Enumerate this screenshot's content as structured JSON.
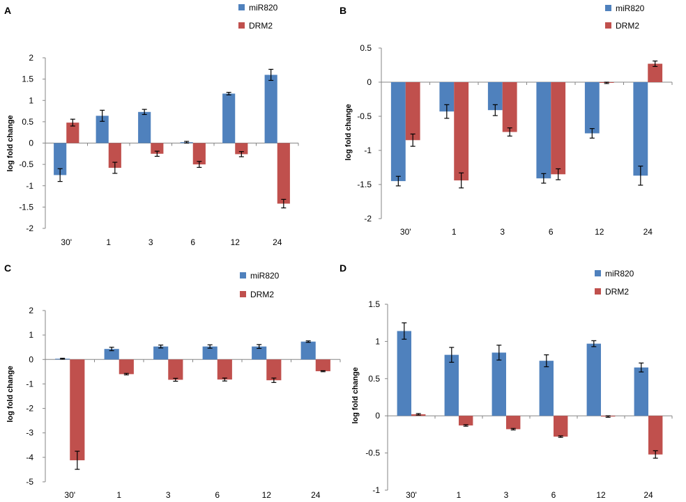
{
  "colors": {
    "miR820": "#4f81bd",
    "DRM2": "#c0504d",
    "axis": "#868686",
    "error": "#000000"
  },
  "chart_data": [
    {
      "panel": "A",
      "type": "bar",
      "categories": [
        "30'",
        "1",
        "3",
        "6",
        "12",
        "24"
      ],
      "series": [
        {
          "name": "miR820",
          "values": [
            -0.75,
            0.64,
            0.73,
            0.02,
            1.16,
            1.6
          ],
          "errors": [
            0.15,
            0.13,
            0.06,
            0.02,
            0.03,
            0.13
          ]
        },
        {
          "name": "DRM2",
          "values": [
            0.48,
            -0.58,
            -0.25,
            -0.5,
            -0.26,
            -1.42
          ],
          "errors": [
            0.08,
            0.13,
            0.06,
            0.07,
            0.06,
            0.1
          ]
        }
      ],
      "ylabel": "log fold change",
      "ylim": [
        -2,
        2
      ],
      "yticks": [
        -2,
        -1.5,
        -1,
        -0.5,
        0,
        0.5,
        1,
        1.5,
        2
      ],
      "ytick_labels": [
        "-2",
        "-1.5",
        "-1",
        "-0.5",
        "0",
        "0.5",
        "1",
        "1.5",
        "2"
      ]
    },
    {
      "panel": "B",
      "type": "bar",
      "categories": [
        "30'",
        "1",
        "3",
        "6",
        "12",
        "24"
      ],
      "series": [
        {
          "name": "miR820",
          "values": [
            -1.45,
            -0.43,
            -0.41,
            -1.41,
            -0.75,
            -1.37
          ],
          "errors": [
            0.07,
            0.1,
            0.08,
            0.07,
            0.07,
            0.14
          ]
        },
        {
          "name": "DRM2",
          "values": [
            -0.85,
            -1.44,
            -0.73,
            -1.35,
            -0.01,
            0.27
          ],
          "errors": [
            0.09,
            0.11,
            0.06,
            0.08,
            0.01,
            0.04
          ]
        }
      ],
      "ylabel": "log fold change",
      "ylim": [
        -2,
        0.5
      ],
      "yticks": [
        -2,
        -1.5,
        -1,
        -0.5,
        0,
        0.5
      ],
      "ytick_labels": [
        "-2",
        "-1.5",
        "-1",
        "-0.5",
        "0",
        "0.5"
      ]
    },
    {
      "panel": "C",
      "type": "bar",
      "categories": [
        "30'",
        "1",
        "3",
        "6",
        "12",
        "24"
      ],
      "series": [
        {
          "name": "miR820",
          "values": [
            0.03,
            0.43,
            0.53,
            0.53,
            0.53,
            0.73
          ],
          "errors": [
            0.02,
            0.07,
            0.06,
            0.07,
            0.08,
            0.03
          ]
        },
        {
          "name": "DRM2",
          "values": [
            -4.12,
            -0.6,
            -0.83,
            -0.82,
            -0.85,
            -0.48
          ],
          "errors": [
            0.37,
            0.03,
            0.06,
            0.06,
            0.09,
            0.02
          ]
        }
      ],
      "ylabel": "log fold change",
      "ylim": [
        -5,
        2
      ],
      "yticks": [
        -5,
        -4,
        -3,
        -2,
        -1,
        0,
        1,
        2
      ],
      "ytick_labels": [
        "-5",
        "-4",
        "-3",
        "-2",
        "-1",
        "0",
        "1",
        "2"
      ]
    },
    {
      "panel": "D",
      "type": "bar",
      "categories": [
        "30'",
        "1",
        "3",
        "6",
        "12",
        "24"
      ],
      "series": [
        {
          "name": "miR820",
          "values": [
            1.14,
            0.82,
            0.85,
            0.74,
            0.97,
            0.65
          ],
          "errors": [
            0.11,
            0.1,
            0.1,
            0.08,
            0.04,
            0.06
          ]
        },
        {
          "name": "DRM2",
          "values": [
            0.02,
            -0.13,
            -0.18,
            -0.28,
            -0.01,
            -0.52
          ],
          "errors": [
            0.01,
            0.01,
            0.01,
            0.01,
            0.01,
            0.05
          ]
        }
      ],
      "ylabel": "log fold change",
      "ylim": [
        -1,
        1.5
      ],
      "yticks": [
        -1,
        -0.5,
        0,
        0.5,
        1,
        1.5
      ],
      "ytick_labels": [
        "-1",
        "-0.5",
        "0",
        "0.5",
        "1",
        "1.5"
      ]
    }
  ]
}
